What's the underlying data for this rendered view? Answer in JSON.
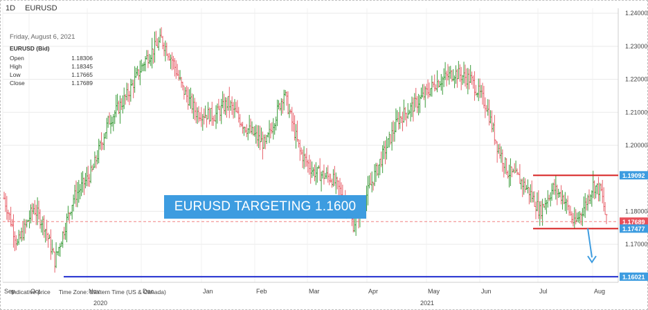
{
  "topbar": {
    "interval": "1D",
    "symbol": "EURUSD"
  },
  "infobox": {
    "date": "Friday, August 6, 2021",
    "symbol": "EURUSD (Bid)",
    "rows": [
      {
        "label": "Open",
        "value": "1.18306"
      },
      {
        "label": "High",
        "value": "1.18345"
      },
      {
        "label": "Low",
        "value": "1.17665"
      },
      {
        "label": "Close",
        "value": "1.17689"
      }
    ]
  },
  "banner": "EURUSD TARGETING 1.1600",
  "footer": {
    "indicative": "Indicative price",
    "timezone": "Time Zone: Eastern Time (US & Canada)"
  },
  "colors": {
    "up": "#3a9c3a",
    "down": "#e8606a",
    "resistance": "#d61f1f",
    "target": "#1f2ccf",
    "arrow": "#3d9ce0",
    "tag": "#3d9ce0",
    "closeTag": "#e8505a"
  },
  "chart_data": {
    "type": "ohlc",
    "y_ticks": [
      "1.24000",
      "1.23000",
      "1.22000",
      "1.21000",
      "1.20000",
      "1.18000",
      "1.17000"
    ],
    "ylim": [
      1.1585,
      1.2415
    ],
    "x_month_labels": [
      "Sep",
      "Oct",
      "Nov",
      "Dec",
      "Jan",
      "Feb",
      "Mar",
      "Apr",
      "May",
      "Jun",
      "Jul",
      "Aug"
    ],
    "x_year_labels": [
      "2020",
      "2021"
    ],
    "anchors": [
      [
        0,
        1.184
      ],
      [
        10,
        1.17
      ],
      [
        22,
        1.181
      ],
      [
        30,
        1.176
      ],
      [
        38,
        1.165
      ],
      [
        52,
        1.184
      ],
      [
        66,
        1.192
      ],
      [
        78,
        1.207
      ],
      [
        92,
        1.215
      ],
      [
        106,
        1.226
      ],
      [
        118,
        1.232
      ],
      [
        126,
        1.226
      ],
      [
        134,
        1.217
      ],
      [
        144,
        1.21
      ],
      [
        158,
        1.209
      ],
      [
        168,
        1.213
      ],
      [
        180,
        1.206
      ],
      [
        196,
        1.2
      ],
      [
        210,
        1.216
      ],
      [
        222,
        1.198
      ],
      [
        232,
        1.192
      ],
      [
        246,
        1.19
      ],
      [
        254,
        1.185
      ],
      [
        262,
        1.176
      ],
      [
        270,
        1.183
      ],
      [
        282,
        1.195
      ],
      [
        296,
        1.208
      ],
      [
        310,
        1.213
      ],
      [
        324,
        1.219
      ],
      [
        338,
        1.222
      ],
      [
        350,
        1.22
      ],
      [
        362,
        1.212
      ],
      [
        370,
        1.2
      ],
      [
        378,
        1.192
      ],
      [
        386,
        1.19
      ],
      [
        394,
        1.186
      ],
      [
        402,
        1.18
      ],
      [
        412,
        1.187
      ],
      [
        420,
        1.184
      ],
      [
        428,
        1.176
      ],
      [
        436,
        1.182
      ],
      [
        442,
        1.188
      ],
      [
        448,
        1.186
      ],
      [
        452,
        1.177
      ]
    ],
    "levels": [
      {
        "name": "resistance",
        "value": 1.19092,
        "label": "1.19092"
      },
      {
        "name": "close",
        "value": 1.17689,
        "label": "1.17689"
      },
      {
        "name": "support",
        "value": 1.17477,
        "label": "1.17477"
      },
      {
        "name": "target",
        "value": 1.16021,
        "label": "1.16021"
      }
    ]
  }
}
